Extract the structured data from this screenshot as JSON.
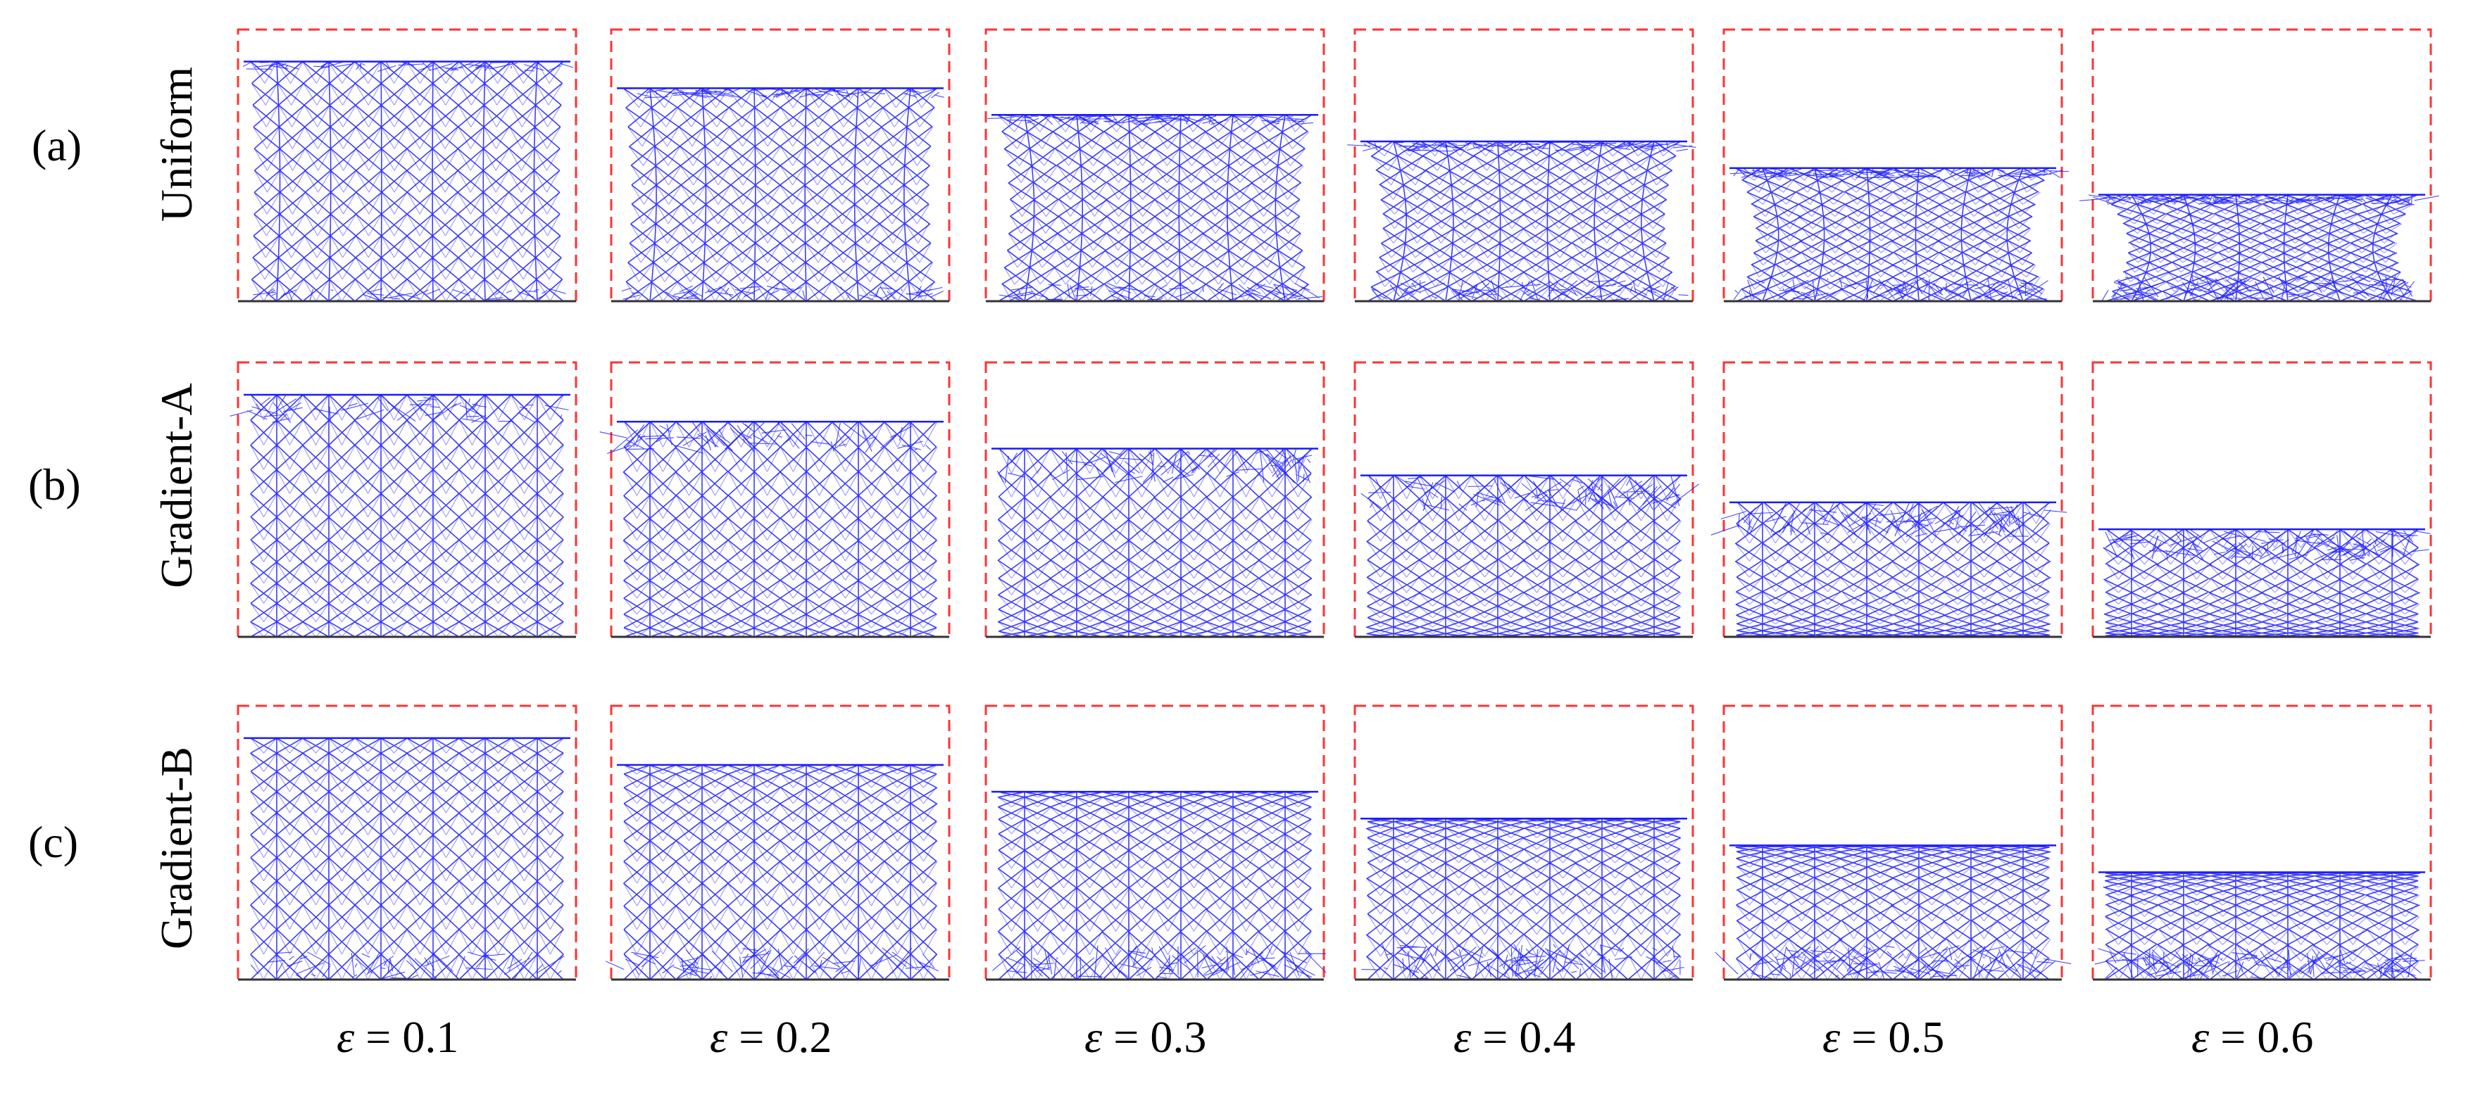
{
  "figure": {
    "rows": [
      {
        "tag": "(a)",
        "name": "Uniform",
        "gradient": "uniform"
      },
      {
        "tag": "(b)",
        "name": "Gradient-A",
        "gradient": "dense-top"
      },
      {
        "tag": "(c)",
        "name": "Gradient-B",
        "gradient": "dense-bottom"
      }
    ],
    "strains": [
      {
        "symbol": "ε",
        "text": " = 0.1",
        "value": 0.1
      },
      {
        "symbol": "ε",
        "text": " = 0.2",
        "value": 0.2
      },
      {
        "symbol": "ε",
        "text": " = 0.3",
        "value": 0.3
      },
      {
        "symbol": "ε",
        "text": " = 0.4",
        "value": 0.4
      },
      {
        "symbol": "ε",
        "text": " = 0.5",
        "value": 0.5
      },
      {
        "symbol": "ε",
        "text": " = 0.6",
        "value": 0.6
      }
    ],
    "colors": {
      "lattice": "#1a1aff",
      "lattice_light": "#8080ff",
      "frame": "#ff3333",
      "ground": "#333333",
      "text": "#000000"
    }
  }
}
